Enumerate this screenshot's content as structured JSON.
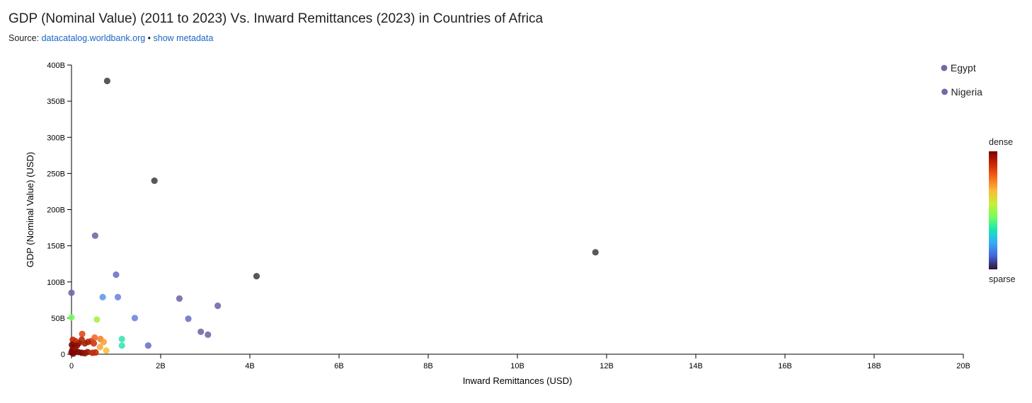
{
  "header": {
    "title": "GDP (Nominal Value) (2011 to 2023) Vs. Inward Remittances (2023) in Countries of Africa",
    "source_prefix": "Source: ",
    "source_link": "datacatalog.worldbank.org",
    "separator": " • ",
    "metadata_link": "show metadata"
  },
  "colors": {
    "accent_link": "#1a66c6",
    "labeled_point": "#6f6aa8",
    "dark_point": "#4a4545",
    "density_gradient": [
      "#30123b",
      "#4662d7",
      "#36aaf9",
      "#1ae4b6",
      "#72fe5e",
      "#c8ef34",
      "#faba39",
      "#f66b19",
      "#cb2a04",
      "#7a0403"
    ]
  },
  "density_legend": {
    "top": "dense",
    "bottom": "sparse"
  },
  "chart_data": {
    "type": "scatter",
    "xlabel": "Inward Remittances (USD)",
    "ylabel": "GDP (Nominal Value) (USD)",
    "xlim": [
      0,
      20000000000
    ],
    "ylim": [
      0,
      400000000000
    ],
    "x_ticks": [
      {
        "value": 0,
        "label": "0"
      },
      {
        "value": 2000000000,
        "label": "2B"
      },
      {
        "value": 4000000000,
        "label": "4B"
      },
      {
        "value": 6000000000,
        "label": "6B"
      },
      {
        "value": 8000000000,
        "label": "8B"
      },
      {
        "value": 10000000000,
        "label": "10B"
      },
      {
        "value": 12000000000,
        "label": "12B"
      },
      {
        "value": 14000000000,
        "label": "14B"
      },
      {
        "value": 16000000000,
        "label": "16B"
      },
      {
        "value": 18000000000,
        "label": "18B"
      },
      {
        "value": 20000000000,
        "label": "20B"
      }
    ],
    "y_ticks": [
      {
        "value": 0,
        "label": "0"
      },
      {
        "value": 50000000000,
        "label": "50B"
      },
      {
        "value": 100000000000,
        "label": "100B"
      },
      {
        "value": 150000000000,
        "label": "150B"
      },
      {
        "value": 200000000000,
        "label": "200B"
      },
      {
        "value": 250000000000,
        "label": "250B"
      },
      {
        "value": 300000000000,
        "label": "300B"
      },
      {
        "value": 350000000000,
        "label": "350B"
      },
      {
        "value": 400000000000,
        "label": "400B"
      }
    ],
    "legend": [
      {
        "label": "Egypt",
        "color": "#6f6aa8"
      },
      {
        "label": "Nigeria",
        "color": "#6f6aa8"
      }
    ],
    "points": [
      {
        "x": 800000000,
        "y": 378000000000,
        "color": "#4a4545"
      },
      {
        "x": 1860000000,
        "y": 240000000000,
        "color": "#4a4545"
      },
      {
        "x": 11750000000,
        "y": 141000000000,
        "color": "#4a4545"
      },
      {
        "x": 4150000000,
        "y": 108000000000,
        "color": "#4a4545"
      },
      {
        "x": 530000000,
        "y": 164000000000,
        "color": "#6f6aa8"
      },
      {
        "x": 1000000000,
        "y": 110000000000,
        "color": "#6f72c8"
      },
      {
        "x": 0,
        "y": 85000000000,
        "color": "#6f6aa8"
      },
      {
        "x": 700000000,
        "y": 79000000000,
        "color": "#5d9cf0"
      },
      {
        "x": 1040000000,
        "y": 79000000000,
        "color": "#6f86e0"
      },
      {
        "x": 2420000000,
        "y": 77000000000,
        "color": "#6f6aa8"
      },
      {
        "x": 3280000000,
        "y": 67000000000,
        "color": "#6f6aa8"
      },
      {
        "x": 0,
        "y": 51000000000,
        "color": "#72fe5e"
      },
      {
        "x": 570000000,
        "y": 48000000000,
        "color": "#a6f04a"
      },
      {
        "x": 1420000000,
        "y": 50000000000,
        "color": "#6f86e0"
      },
      {
        "x": 2620000000,
        "y": 49000000000,
        "color": "#6f72c8"
      },
      {
        "x": 2900000000,
        "y": 31000000000,
        "color": "#6f6aa8"
      },
      {
        "x": 3060000000,
        "y": 27000000000,
        "color": "#6f6aa8"
      },
      {
        "x": 1130000000,
        "y": 21000000000,
        "color": "#3ce3b4"
      },
      {
        "x": 1130000000,
        "y": 12000000000,
        "color": "#3ce3b4"
      },
      {
        "x": 1720000000,
        "y": 12000000000,
        "color": "#6f72c8"
      },
      {
        "x": 240000000,
        "y": 28000000000,
        "color": "#e04a1c"
      },
      {
        "x": 520000000,
        "y": 23000000000,
        "color": "#ef6a2b"
      },
      {
        "x": 650000000,
        "y": 21000000000,
        "color": "#f77f2e"
      },
      {
        "x": 720000000,
        "y": 17000000000,
        "color": "#faa23a"
      },
      {
        "x": 780000000,
        "y": 5000000000,
        "color": "#fbc13f"
      },
      {
        "x": 640000000,
        "y": 10000000000,
        "color": "#f9a93e"
      },
      {
        "x": 500000000,
        "y": 15000000000,
        "color": "#c8361a"
      },
      {
        "x": 440000000,
        "y": 18000000000,
        "color": "#d7441c"
      },
      {
        "x": 370000000,
        "y": 17000000000,
        "color": "#b22408"
      },
      {
        "x": 300000000,
        "y": 15000000000,
        "color": "#a31f05"
      },
      {
        "x": 230000000,
        "y": 20000000000,
        "color": "#b3290a"
      },
      {
        "x": 160000000,
        "y": 15000000000,
        "color": "#8c1203"
      },
      {
        "x": 90000000,
        "y": 18000000000,
        "color": "#cb2a04"
      },
      {
        "x": 30000000,
        "y": 20000000000,
        "color": "#c42b06"
      },
      {
        "x": 10000000,
        "y": 13000000000,
        "color": "#7a0403"
      },
      {
        "x": 60000000,
        "y": 10000000000,
        "color": "#7a0403"
      },
      {
        "x": 120000000,
        "y": 12000000000,
        "color": "#900c03"
      },
      {
        "x": 20000000,
        "y": 6000000000,
        "color": "#8a0c03"
      },
      {
        "x": 80000000,
        "y": 5000000000,
        "color": "#9a1504"
      },
      {
        "x": 150000000,
        "y": 3000000000,
        "color": "#7a0403"
      },
      {
        "x": 40000000,
        "y": 1000000000,
        "color": "#7a0403"
      },
      {
        "x": 230000000,
        "y": 2000000000,
        "color": "#7a0403"
      },
      {
        "x": 300000000,
        "y": 1500000000,
        "color": "#8c1203"
      },
      {
        "x": 360000000,
        "y": 3000000000,
        "color": "#9a1504"
      },
      {
        "x": 470000000,
        "y": 2000000000,
        "color": "#b3290a"
      },
      {
        "x": 540000000,
        "y": 2500000000,
        "color": "#c42b06"
      },
      {
        "x": 0,
        "y": 2500000000,
        "color": "#7a0403"
      }
    ],
    "labeled_points": [
      {
        "label": "Egypt",
        "x": 19570000000,
        "y": 396000000000
      },
      {
        "label": "Nigeria",
        "x": 19580000000,
        "y": 363000000000
      }
    ]
  }
}
